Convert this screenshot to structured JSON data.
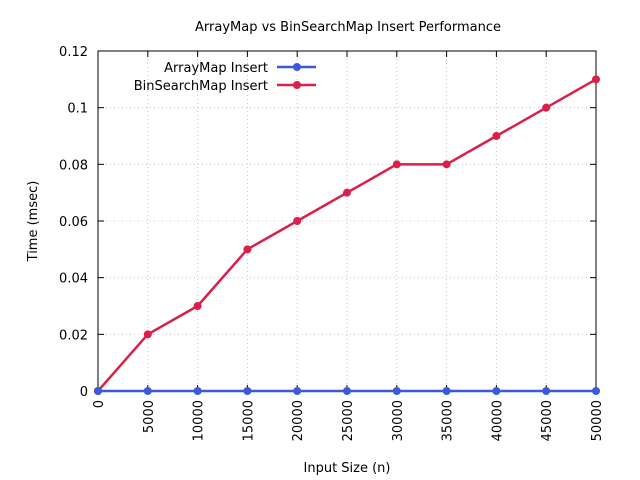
{
  "chart_data": {
    "type": "line",
    "title": "ArrayMap vs BinSearchMap Insert Performance",
    "xlabel": "Input Size (n)",
    "ylabel": "Time (msec)",
    "x": [
      0,
      5000,
      10000,
      15000,
      20000,
      25000,
      30000,
      35000,
      40000,
      45000,
      50000
    ],
    "xlim": [
      0,
      50000
    ],
    "ylim": [
      0,
      0.12
    ],
    "x_ticks": [
      "0",
      "5000",
      "10000",
      "15000",
      "20000",
      "25000",
      "30000",
      "35000",
      "40000",
      "45000",
      "50000"
    ],
    "y_ticks": [
      "0",
      "0.02",
      "0.04",
      "0.06",
      "0.08",
      "0.1",
      "0.12"
    ],
    "grid": true,
    "legend_position": "top-left",
    "series": [
      {
        "name": "ArrayMap Insert",
        "color": "#3a5bd9",
        "values": [
          0,
          0,
          0,
          0,
          0,
          0,
          0,
          0,
          0,
          0,
          0
        ]
      },
      {
        "name": "BinSearchMap Insert",
        "color": "#dc1e4a",
        "values": [
          0,
          0.02,
          0.03,
          0.05,
          0.06,
          0.07,
          0.08,
          0.08,
          0.09,
          0.1,
          0.11
        ]
      }
    ]
  }
}
